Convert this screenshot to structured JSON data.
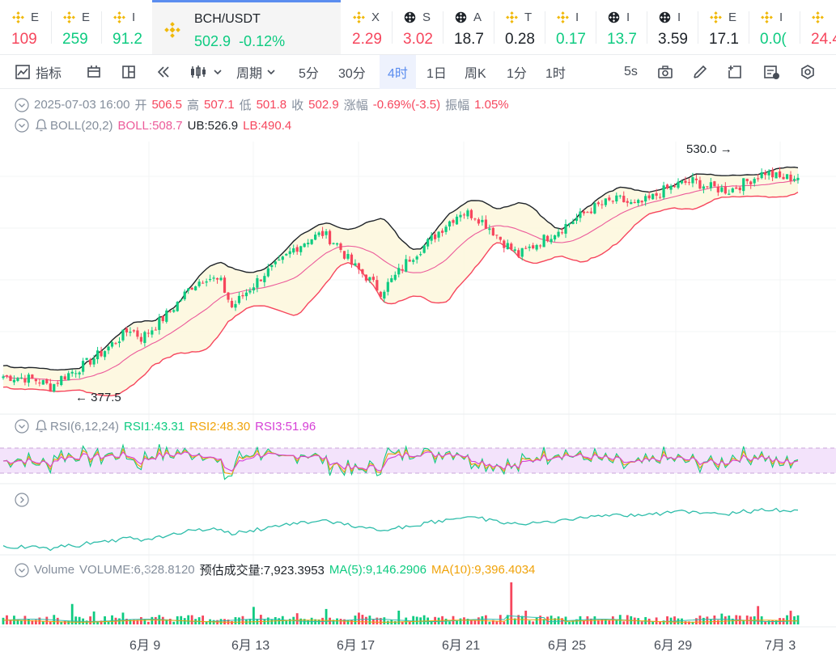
{
  "ticker": [
    {
      "sym": "E",
      "value": "109",
      "color": "#f6465d",
      "icon": "binance-icon"
    },
    {
      "sym": "E",
      "value": "259",
      "color": "#0ecb81",
      "icon": "binance-icon"
    },
    {
      "sym": "I",
      "value": "91.2",
      "color": "#0ecb81",
      "icon": "binance-icon"
    },
    {
      "sym": "BCH/USDT",
      "value": "502.9",
      "change": "-0.12%",
      "color": "#0ecb81",
      "icon": "binance-icon",
      "active": true
    },
    {
      "sym": "X",
      "value": "2.29",
      "color": "#f6465d",
      "icon": "binance-icon"
    },
    {
      "sym": "S",
      "value": "3.02",
      "color": "#f6465d",
      "icon": "bnb-chain-icon"
    },
    {
      "sym": "A",
      "value": "18.7",
      "color": "#1e2329",
      "icon": "bnb-chain-icon"
    },
    {
      "sym": "T",
      "value": "0.28",
      "color": "#1e2329",
      "icon": "binance-icon"
    },
    {
      "sym": "I",
      "value": "0.17",
      "color": "#0ecb81",
      "icon": "binance-icon"
    },
    {
      "sym": "I",
      "value": "13.7",
      "color": "#0ecb81",
      "icon": "bnb-chain-icon"
    },
    {
      "sym": "I",
      "value": "3.59",
      "color": "#1e2329",
      "icon": "bnb-chain-icon"
    },
    {
      "sym": "E",
      "value": "17.1",
      "color": "#1e2329",
      "icon": "binance-icon"
    },
    {
      "sym": "I",
      "value": "0.0(",
      "color": "#0ecb81",
      "icon": "binance-icon"
    },
    {
      "sym": "",
      "value": "24.4",
      "color": "#f6465d",
      "icon": "binance-icon"
    }
  ],
  "toolbar": {
    "indicators": "指标",
    "period": "周期",
    "intervals": [
      "5分",
      "30分",
      "4时",
      "1日",
      "周K",
      "1分",
      "1时"
    ],
    "active_interval": "4时",
    "refresh": "5s"
  },
  "ohlc": {
    "date": "2025-07-03 16:00",
    "open_label": "开",
    "open": "506.5",
    "high_label": "高",
    "high": "507.1",
    "low_label": "低",
    "low": "501.8",
    "close_label": "收",
    "close": "502.9",
    "change_label": "涨幅",
    "change": "-0.69%(-3.5)",
    "amp_label": "振幅",
    "amp": "1.05%"
  },
  "boll": {
    "name": "BOLL(20,2)",
    "mid": "BOLL:508.7",
    "ub": "UB:526.9",
    "lb": "LB:490.4"
  },
  "rsi": {
    "name": "RSI(6,12,24)",
    "rsi1": "RSI1:43.31",
    "rsi2": "RSI2:48.30",
    "rsi3": "RSI3:51.96"
  },
  "volume": {
    "name": "Volume",
    "value": "VOLUME:6,328.8120",
    "est": "预估成交量:7,923.3953",
    "ma5": "MA(5):9,146.2906",
    "ma10": "MA(10):9,396.4034"
  },
  "annotations": {
    "high": "530.0",
    "low": "377.5"
  },
  "colors": {
    "up": "#0ecb81",
    "down": "#f6465d",
    "accent": "#5b8def",
    "boll_mid": "#ec5b9a",
    "rsi_band": "#f3e3fb"
  },
  "chart_data": {
    "type": "candlestick",
    "x_ticks": [
      "6月 9",
      "6月 13",
      "6月 17",
      "6月 21",
      "6月 25",
      "6月 29",
      "7月 3"
    ],
    "annotated_high": 530.0,
    "annotated_low": 377.5,
    "close_path": [
      [
        0,
        385
      ],
      [
        6,
        384
      ],
      [
        10,
        382
      ],
      [
        13,
        378
      ],
      [
        16,
        384
      ],
      [
        22,
        392
      ],
      [
        28,
        402
      ],
      [
        32,
        410
      ],
      [
        35,
        416
      ],
      [
        38,
        410
      ],
      [
        42,
        418
      ],
      [
        47,
        430
      ],
      [
        52,
        444
      ],
      [
        56,
        450
      ],
      [
        60,
        446
      ],
      [
        63,
        430
      ],
      [
        67,
        440
      ],
      [
        72,
        452
      ],
      [
        76,
        458
      ],
      [
        80,
        468
      ],
      [
        84,
        474
      ],
      [
        88,
        478
      ],
      [
        92,
        471
      ],
      [
        96,
        458
      ],
      [
        100,
        450
      ],
      [
        104,
        440
      ],
      [
        108,
        450
      ],
      [
        112,
        462
      ],
      [
        117,
        472
      ],
      [
        122,
        484
      ],
      [
        126,
        492
      ],
      [
        130,
        490
      ],
      [
        134,
        482
      ],
      [
        138,
        472
      ],
      [
        142,
        464
      ],
      [
        146,
        470
      ],
      [
        150,
        476
      ],
      [
        154,
        482
      ],
      [
        158,
        488
      ],
      [
        162,
        494
      ],
      [
        166,
        498
      ],
      [
        170,
        500
      ],
      [
        174,
        496
      ],
      [
        178,
        500
      ],
      [
        182,
        506
      ],
      [
        186,
        510
      ],
      [
        190,
        512
      ],
      [
        195,
        508
      ],
      [
        200,
        506
      ],
      [
        205,
        512
      ],
      [
        210,
        518
      ],
      [
        214,
        514
      ],
      [
        220,
        515
      ]
    ],
    "boll_last": {
      "mid": 508.7,
      "ub": 526.9,
      "lb": 490.4
    },
    "rsi_last": {
      "rsi1": 43.31,
      "rsi2": 48.3,
      "rsi3": 51.96
    }
  }
}
